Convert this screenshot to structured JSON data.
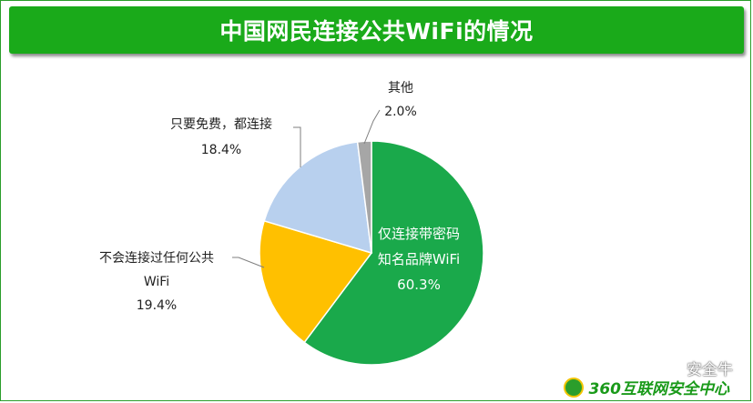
{
  "chart_data": {
    "type": "pie",
    "title": "中国网民连接公共WiFi的情况",
    "slices": [
      {
        "name": "仅连接带密码知名品牌WiFi",
        "lines": [
          "仅连接带密码",
          "知名品牌WiFi",
          "60.3%"
        ],
        "value": 60.3,
        "color": "#1aa94b"
      },
      {
        "name": "不会连接过任何公共WiFi",
        "lines": [
          "不会连接过任何公共",
          "WiFi",
          "19.4%"
        ],
        "value": 19.4,
        "color": "#ffc000"
      },
      {
        "name": "只要免费，都连接",
        "lines": [
          "只要免费，都连接",
          "18.4%"
        ],
        "value": 18.4,
        "color": "#b8d0ee"
      },
      {
        "name": "其他",
        "lines": [
          "其他",
          "2.0%"
        ],
        "value": 2.0,
        "color": "#a6a6a6"
      }
    ]
  },
  "watermark": "安全牛",
  "brand": "360互联网安全中心",
  "colors": {
    "title_bg": "#1aaa1a",
    "border": "#2a9d2a"
  }
}
